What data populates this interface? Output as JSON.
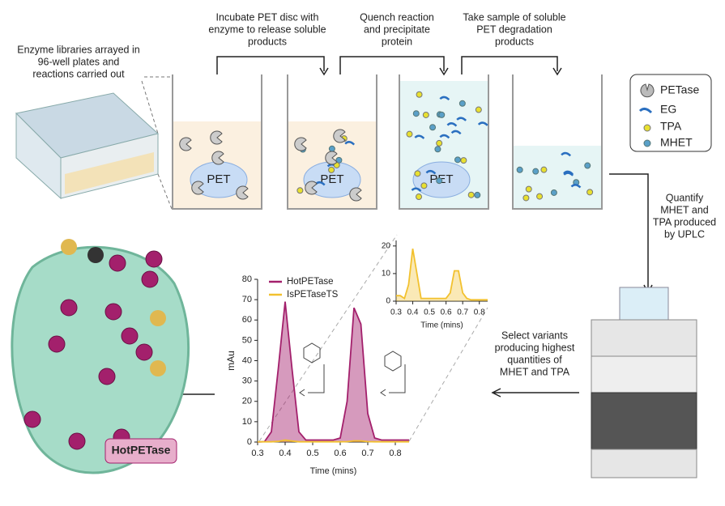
{
  "steps": {
    "library": [
      "Enzyme libraries arrayed in",
      "96-well plates and",
      "reactions carried out"
    ],
    "incubate": [
      "Incubate PET disc with",
      "enzyme to release soluble",
      "products"
    ],
    "quench": [
      "Quench reaction",
      "and precipitate",
      "protein"
    ],
    "sample": [
      "Take sample of soluble",
      "PET degradation",
      "products"
    ],
    "quantify": [
      "Quantify",
      "MHET and",
      "TPA produced",
      "by UPLC"
    ],
    "select": [
      "Select variants",
      "producing highest",
      "quantities of",
      "MHET and TPA"
    ]
  },
  "disc_labels": [
    "PET",
    "PET",
    "PET"
  ],
  "legend": [
    "PETase",
    "EG",
    "TPA",
    "MHET"
  ],
  "result": "HotPETase",
  "chart_data": [
    {
      "type": "line",
      "y_label": "mAu",
      "x_label": "Time (mins)",
      "x": [
        0.3,
        0.325,
        0.35,
        0.375,
        0.4,
        0.425,
        0.45,
        0.475,
        0.5,
        0.525,
        0.55,
        0.575,
        0.6,
        0.625,
        0.65,
        0.675,
        0.7,
        0.725,
        0.75,
        0.775,
        0.8,
        0.825,
        0.85
      ],
      "series": [
        {
          "name": "HotPETase",
          "color": "#a3206c",
          "values": [
            0,
            0.2,
            5,
            36,
            69,
            36,
            5,
            1,
            1,
            1,
            1,
            1,
            2,
            20,
            66,
            58,
            14,
            2,
            1,
            1,
            1,
            1,
            1
          ]
        },
        {
          "name": "IsPETaseTS",
          "color": "#f2c12e",
          "values": [
            0.1,
            0.1,
            0.1,
            0.3,
            1,
            0.5,
            0.1,
            0.1,
            0.1,
            0.1,
            0.1,
            0.1,
            0.1,
            0.2,
            0.6,
            0.6,
            0.2,
            0.1,
            0.1,
            0.1,
            0.1,
            0.1,
            0.1
          ]
        }
      ],
      "xlim": [
        0.3,
        0.85
      ],
      "ylim": [
        0,
        80
      ],
      "xticks": [
        0.3,
        0.4,
        0.5,
        0.6,
        0.7,
        0.8
      ],
      "yticks": [
        0,
        10,
        20,
        30,
        40,
        50,
        60,
        70,
        80
      ]
    },
    {
      "type": "line",
      "x_label": "Time (mins)",
      "x": [
        0.3,
        0.325,
        0.35,
        0.375,
        0.4,
        0.425,
        0.45,
        0.475,
        0.5,
        0.525,
        0.55,
        0.575,
        0.6,
        0.625,
        0.65,
        0.675,
        0.7,
        0.725,
        0.75,
        0.775,
        0.8,
        0.825,
        0.85
      ],
      "series": [
        {
          "name": "IsPETaseTS",
          "color": "#f2c12e",
          "values": [
            2,
            2,
            1,
            6,
            19,
            10,
            1,
            1,
            1,
            1,
            1,
            1,
            1,
            3,
            11,
            11,
            3,
            1,
            0.5,
            0.5,
            0.5,
            0.5,
            0.5
          ]
        }
      ],
      "xlim": [
        0.3,
        0.85
      ],
      "ylim": [
        0,
        22
      ],
      "xticks": [
        0.3,
        0.4,
        0.5,
        0.6,
        0.7,
        0.8
      ],
      "yticks": [
        0,
        10,
        20
      ]
    }
  ]
}
